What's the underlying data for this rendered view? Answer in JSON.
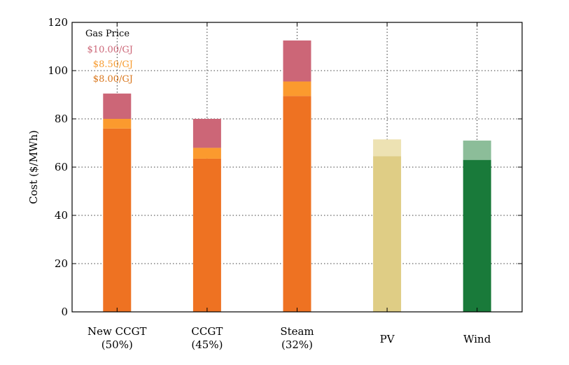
{
  "chart_data": {
    "type": "bar",
    "stacked": true,
    "ylabel": "Cost ($/MWh)",
    "ylim": [
      0,
      120
    ],
    "yticks": [
      0,
      20,
      40,
      60,
      80,
      100,
      120
    ],
    "grid": true,
    "legend_placement": "top-left",
    "categories": [
      {
        "line1": "New CCGT",
        "line2": "(50%)"
      },
      {
        "line1": "CCGT",
        "line2": "(45%)"
      },
      {
        "line1": "Steam",
        "line2": "(32%)"
      },
      {
        "line1": "PV",
        "line2": ""
      },
      {
        "line1": "Wind",
        "line2": ""
      }
    ],
    "legend": {
      "title": "Gas Price",
      "entries": [
        {
          "label": "$10.00/GJ",
          "color": "#cc6677"
        },
        {
          "label": "$8.50/GJ",
          "color": "#f79b2e"
        },
        {
          "label": "$8.00/GJ",
          "color": "#d9761c"
        }
      ]
    },
    "bars": [
      {
        "segments": [
          {
            "level": "$8.00/GJ",
            "top": 76,
            "color": "#ee7222"
          },
          {
            "level": "$8.50/GJ",
            "top": 80,
            "color": "#fb9a2e"
          },
          {
            "level": "$10.00/GJ",
            "top": 90.5,
            "color": "#cc6677"
          }
        ]
      },
      {
        "segments": [
          {
            "level": "$8.00/GJ",
            "top": 63.5,
            "color": "#ee7222"
          },
          {
            "level": "$8.50/GJ",
            "top": 68,
            "color": "#fb9a2e"
          },
          {
            "level": "$10.00/GJ",
            "top": 80,
            "color": "#cc6677"
          }
        ]
      },
      {
        "segments": [
          {
            "level": "$8.00/GJ",
            "top": 89.5,
            "color": "#ee7222"
          },
          {
            "level": "$8.50/GJ",
            "top": 95.5,
            "color": "#fb9a2e"
          },
          {
            "level": "$10.00/GJ",
            "top": 112.5,
            "color": "#cc6677"
          }
        ]
      },
      {
        "segments": [
          {
            "level": "base",
            "top": 64.5,
            "color": "#dfcd85"
          },
          {
            "level": "upper",
            "top": 71.5,
            "color": "#ede2b3"
          }
        ]
      },
      {
        "segments": [
          {
            "level": "base",
            "top": 63,
            "color": "#197a3a"
          },
          {
            "level": "upper",
            "top": 71,
            "color": "#8cbd99"
          }
        ]
      }
    ]
  }
}
